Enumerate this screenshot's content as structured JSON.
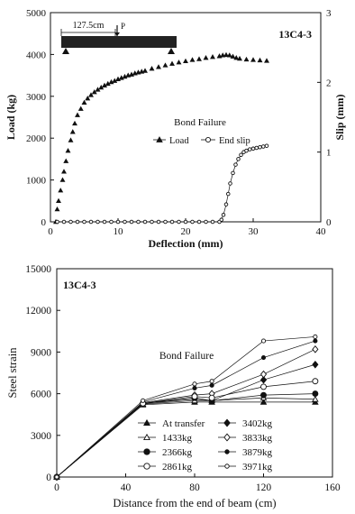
{
  "chart_data": [
    {
      "type": "scatter",
      "title": "13C4-3",
      "xlabel": "Deflection (mm)",
      "ylabel": "Load (kg)",
      "y2label": "Slip (mm)",
      "xlim": [
        0,
        40
      ],
      "ylim": [
        0,
        5000
      ],
      "y2lim": [
        0,
        3
      ],
      "xticks": [
        0,
        10,
        20,
        30,
        40
      ],
      "yticks": [
        0,
        1000,
        2000,
        3000,
        4000,
        5000
      ],
      "y2ticks": [
        0,
        1,
        2,
        3
      ],
      "legend_title": "Bond Failure",
      "legend_position": "center-right",
      "inset": {
        "dimension_label": "127.5cm",
        "load_label": "P"
      },
      "series": [
        {
          "name": "Load",
          "marker": "filled-triangle",
          "axis": "left",
          "x": [
            0.8,
            1,
            1.2,
            1.5,
            1.8,
            2,
            2.3,
            2.6,
            3,
            3.3,
            3.6,
            4,
            4.5,
            5,
            5.5,
            6,
            6.5,
            7,
            7.5,
            8,
            8.5,
            9,
            9.5,
            10,
            10.5,
            11,
            11.5,
            12,
            12.5,
            13,
            13.5,
            14,
            15,
            16,
            17,
            18,
            19,
            20,
            21,
            22,
            23,
            24,
            25,
            25.5,
            26,
            26.5,
            27,
            27.5,
            28,
            29,
            30,
            31,
            32
          ],
          "y": [
            0,
            300,
            500,
            750,
            1000,
            1200,
            1450,
            1700,
            1950,
            2150,
            2350,
            2550,
            2700,
            2850,
            2950,
            3030,
            3100,
            3160,
            3210,
            3260,
            3300,
            3340,
            3370,
            3410,
            3440,
            3470,
            3500,
            3520,
            3550,
            3570,
            3590,
            3610,
            3660,
            3700,
            3740,
            3780,
            3810,
            3840,
            3870,
            3890,
            3920,
            3940,
            3960,
            3980,
            3990,
            3980,
            3950,
            3920,
            3900,
            3880,
            3870,
            3860,
            3850
          ]
        },
        {
          "name": "End slip",
          "marker": "open-circle",
          "axis": "right",
          "x": [
            1,
            2,
            3,
            4,
            5,
            6,
            7,
            8,
            9,
            10,
            11,
            12,
            13,
            14,
            15,
            16,
            17,
            18,
            19,
            20,
            21,
            22,
            23,
            24,
            25,
            25.3,
            25.6,
            26,
            26.3,
            26.6,
            27,
            27.4,
            27.8,
            28.2,
            28.6,
            29,
            29.5,
            30,
            30.5,
            31,
            31.5,
            32
          ],
          "y": [
            0,
            0,
            0,
            0,
            0,
            0,
            0,
            0,
            0,
            0,
            0,
            0,
            0,
            0,
            0,
            0,
            0,
            0,
            0,
            0,
            0,
            0,
            0,
            0,
            0,
            0.03,
            0.1,
            0.25,
            0.4,
            0.55,
            0.7,
            0.82,
            0.9,
            0.96,
            1.0,
            1.02,
            1.04,
            1.05,
            1.06,
            1.07,
            1.08,
            1.09
          ]
        }
      ]
    },
    {
      "type": "line",
      "title": "13C4-3",
      "xlabel": "Distance from the end of beam (cm)",
      "ylabel": "Steel strain",
      "xlim": [
        0,
        160
      ],
      "ylim": [
        0,
        15000
      ],
      "xticks": [
        0,
        40,
        80,
        120,
        160
      ],
      "yticks": [
        0,
        3000,
        6000,
        9000,
        12000,
        15000
      ],
      "annotation": "Bond Failure",
      "legend_position": "lower-right",
      "x": [
        0,
        50,
        80,
        90,
        120,
        150
      ],
      "series": [
        {
          "name": "At transfer",
          "marker": "filled-triangle",
          "values": [
            0,
            5200,
            5400,
            5400,
            5400,
            5400
          ]
        },
        {
          "name": "3402kg",
          "marker": "filled-diamond",
          "values": [
            0,
            5300,
            5600,
            5500,
            7000,
            8100
          ]
        },
        {
          "name": "1433kg",
          "marker": "open-triangle",
          "values": [
            0,
            5250,
            5500,
            5500,
            5700,
            5600
          ]
        },
        {
          "name": "3833kg",
          "marker": "open-diamond",
          "values": [
            0,
            5350,
            5900,
            6000,
            7400,
            9200
          ]
        },
        {
          "name": "2366kg",
          "marker": "filled-circle",
          "values": [
            0,
            5300,
            5700,
            5500,
            5900,
            6000
          ]
        },
        {
          "name": "3879kg",
          "marker": "small-filled-circle",
          "values": [
            0,
            5400,
            6400,
            6600,
            8600,
            9800
          ]
        },
        {
          "name": "2861kg",
          "marker": "open-circle",
          "values": [
            0,
            5300,
            5800,
            5700,
            6500,
            6900
          ]
        },
        {
          "name": "3971kg",
          "marker": "small-open-circle",
          "values": [
            0,
            5500,
            6700,
            6900,
            9800,
            10100
          ]
        }
      ]
    }
  ]
}
